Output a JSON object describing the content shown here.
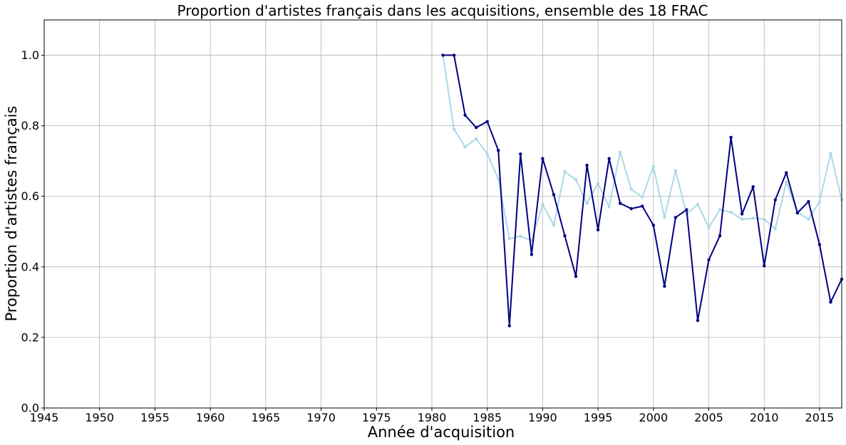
{
  "chart_data": {
    "type": "line",
    "title": "Proportion d'artistes français dans les acquisitions, ensemble des 18 FRAC",
    "xlabel": "Année d'acquisition",
    "ylabel": "Proportion d'artistes français",
    "xlim": [
      1945,
      2017
    ],
    "ylim": [
      0.0,
      1.1
    ],
    "xticks": [
      1945,
      1950,
      1955,
      1960,
      1965,
      1970,
      1975,
      1980,
      1985,
      1990,
      1995,
      2000,
      2005,
      2010,
      2015
    ],
    "yticks": [
      "0.0",
      "0.2",
      "0.4",
      "0.6",
      "0.8",
      "1.0"
    ],
    "grid": true,
    "series": [
      {
        "color": "#add8e6",
        "marker": "dot",
        "x": [
          1981,
          1982,
          1983,
          1984,
          1985,
          1986,
          1987,
          1988,
          1989,
          1990,
          1991,
          1992,
          1993,
          1994,
          1995,
          1996,
          1997,
          1998,
          1999,
          2000,
          2001,
          2002,
          2003,
          2004,
          2005,
          2006,
          2007,
          2008,
          2009,
          2010,
          2011,
          2012,
          2013,
          2014,
          2015,
          2016,
          2017
        ],
        "values": [
          1.0,
          0.79,
          0.74,
          0.763,
          0.72,
          0.65,
          0.48,
          0.487,
          0.475,
          0.577,
          0.518,
          0.67,
          0.647,
          0.58,
          0.637,
          0.57,
          0.725,
          0.62,
          0.598,
          0.685,
          0.54,
          0.673,
          0.55,
          0.577,
          0.512,
          0.562,
          0.555,
          0.535,
          0.538,
          0.535,
          0.508,
          0.64,
          0.555,
          0.535,
          0.585,
          0.722,
          0.59
        ]
      },
      {
        "color": "#000080",
        "marker": "dot",
        "x": [
          1981,
          1982,
          1983,
          1984,
          1985,
          1986,
          1987,
          1988,
          1989,
          1990,
          1991,
          1992,
          1993,
          1994,
          1995,
          1996,
          1997,
          1998,
          1999,
          2000,
          2001,
          2002,
          2003,
          2004,
          2005,
          2006,
          2007,
          2008,
          2009,
          2010,
          2011,
          2012,
          2013,
          2014,
          2015,
          2016,
          2017
        ],
        "values": [
          1.0,
          1.0,
          0.83,
          0.795,
          0.812,
          0.73,
          0.233,
          0.72,
          0.435,
          0.707,
          0.605,
          0.488,
          0.373,
          0.688,
          0.505,
          0.707,
          0.58,
          0.565,
          0.572,
          0.518,
          0.345,
          0.54,
          0.562,
          0.248,
          0.42,
          0.488,
          0.767,
          0.55,
          0.627,
          0.403,
          0.59,
          0.667,
          0.553,
          0.585,
          0.463,
          0.3,
          0.365
        ]
      }
    ]
  }
}
